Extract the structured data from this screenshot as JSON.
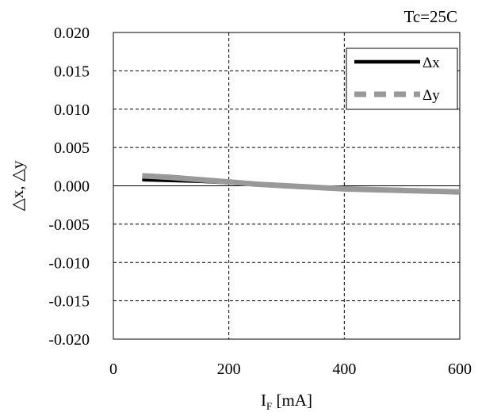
{
  "chart_data": {
    "type": "line",
    "annotation": "Tc=25C",
    "xlabel_main": "I",
    "xlabel_sub": "F",
    "xlabel_unit": " [mA]",
    "ylabel": "△x, △y",
    "xlim": [
      0,
      600
    ],
    "ylim": [
      -0.02,
      0.02
    ],
    "x_ticks": [
      0,
      200,
      400,
      600
    ],
    "x_tick_labels": [
      "0",
      "200",
      "400",
      "600"
    ],
    "y_ticks": [
      0.02,
      0.015,
      0.01,
      0.005,
      0.0,
      -0.005,
      -0.01,
      -0.015,
      -0.02
    ],
    "y_tick_labels": [
      "0.020",
      "0.015",
      "0.010",
      "0.005",
      "0.000",
      "-0.005",
      "-0.010",
      "-0.015",
      "-0.020"
    ],
    "grid": true,
    "legend_position": "top-right",
    "series": [
      {
        "name": "Δx",
        "color": "#000000",
        "style": "solid",
        "x": [
          50,
          100,
          150,
          200,
          250,
          300,
          350,
          400,
          450,
          500,
          550,
          600
        ],
        "y": [
          0.0008,
          0.0007,
          0.0006,
          0.0004,
          0.0002,
          0.0,
          -0.0002,
          -0.0004,
          -0.0005,
          -0.0006,
          -0.0007,
          -0.0008
        ]
      },
      {
        "name": "Δy",
        "color": "#999999",
        "style": "dashed",
        "x": [
          50,
          100,
          150,
          200,
          250,
          300,
          350,
          400,
          450,
          500,
          550,
          600
        ],
        "y": [
          0.0013,
          0.0011,
          0.0008,
          0.0005,
          0.0002,
          0.0,
          -0.0002,
          -0.0004,
          -0.0005,
          -0.0006,
          -0.0007,
          -0.0008
        ]
      }
    ]
  }
}
